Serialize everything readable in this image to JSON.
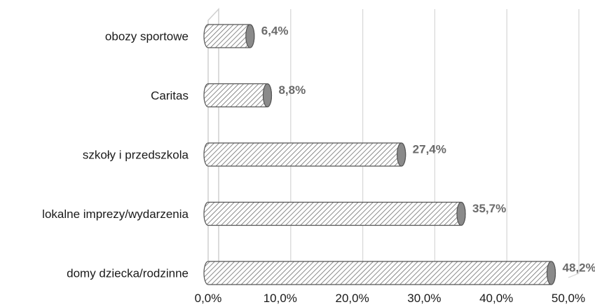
{
  "chart_data": {
    "type": "bar",
    "orientation": "horizontal",
    "categories": [
      "obozy sportowe",
      "Caritas",
      "szkoły i przedszkola",
      "lokalne imprezy/wydarzenia",
      "domy dziecka/rodzinne"
    ],
    "values": [
      6.4,
      8.8,
      27.4,
      35.7,
      48.2
    ],
    "data_labels": [
      "6,4%",
      "8,8%",
      "27,4%",
      "35,7%",
      "48,2%"
    ],
    "x_ticks": [
      0,
      10,
      20,
      30,
      40,
      50
    ],
    "x_tick_labels": [
      "0,0%",
      "10,0%",
      "20,0%",
      "30,0%",
      "40,0%",
      "50,0%"
    ],
    "xlim": [
      0,
      50
    ],
    "title": "",
    "xlabel": "",
    "ylabel": "",
    "grid": "vertical",
    "legend": "none",
    "bar_style": "3d-cylinder-hatched",
    "colors": {
      "bar_stroke": "#555555",
      "hatch": "#6e6e6e",
      "grid": "#d9d9d9",
      "data_label": "#6b6b6b"
    }
  }
}
